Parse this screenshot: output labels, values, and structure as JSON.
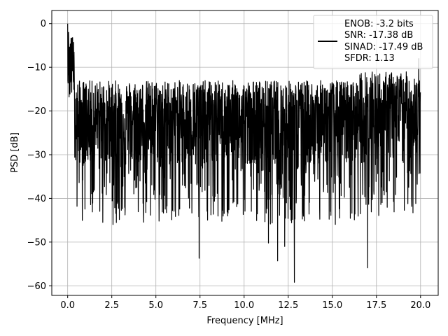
{
  "chart_data": {
    "type": "line",
    "title": "",
    "xlabel": "Frequency [MHz]",
    "ylabel": "PSD [dB]",
    "xlim": [
      -0.9,
      21.0
    ],
    "ylim": [
      -62.2,
      3.0
    ],
    "xticks": [
      0.0,
      2.5,
      5.0,
      7.5,
      10.0,
      12.5,
      15.0,
      17.5,
      20.0
    ],
    "xtick_labels": [
      "0.0",
      "2.5",
      "5.0",
      "7.5",
      "10.0",
      "12.5",
      "15.0",
      "17.5",
      "20.0"
    ],
    "yticks": [
      0,
      -10,
      -20,
      -30,
      -40,
      -50,
      -60
    ],
    "ytick_labels": [
      "0",
      "−10",
      "−20",
      "−30",
      "−40",
      "−50",
      "−60"
    ],
    "grid": true,
    "legend_position": "top-right",
    "legend": [
      "ENOB: -3.2 bits",
      "SNR: -17.38 dB",
      "SINAD: -17.49 dB",
      "SFDR: 1.13"
    ],
    "series": [
      {
        "color": "#000000",
        "x_range": [
          0.0,
          20.0
        ],
        "points": 2000,
        "peaks": [
          {
            "x": 0.0,
            "y": 0.0
          },
          {
            "x": 0.05,
            "y": -2.0
          },
          {
            "x": 19.9,
            "y": -8.0
          }
        ],
        "dips": [
          {
            "x": 7.45,
            "y": -53.7
          },
          {
            "x": 11.38,
            "y": -50.2
          },
          {
            "x": 11.9,
            "y": -54.3
          },
          {
            "x": 12.3,
            "y": -51.0
          },
          {
            "x": 12.85,
            "y": -59.2
          },
          {
            "x": 17.0,
            "y": -55.9
          }
        ]
      }
    ]
  }
}
